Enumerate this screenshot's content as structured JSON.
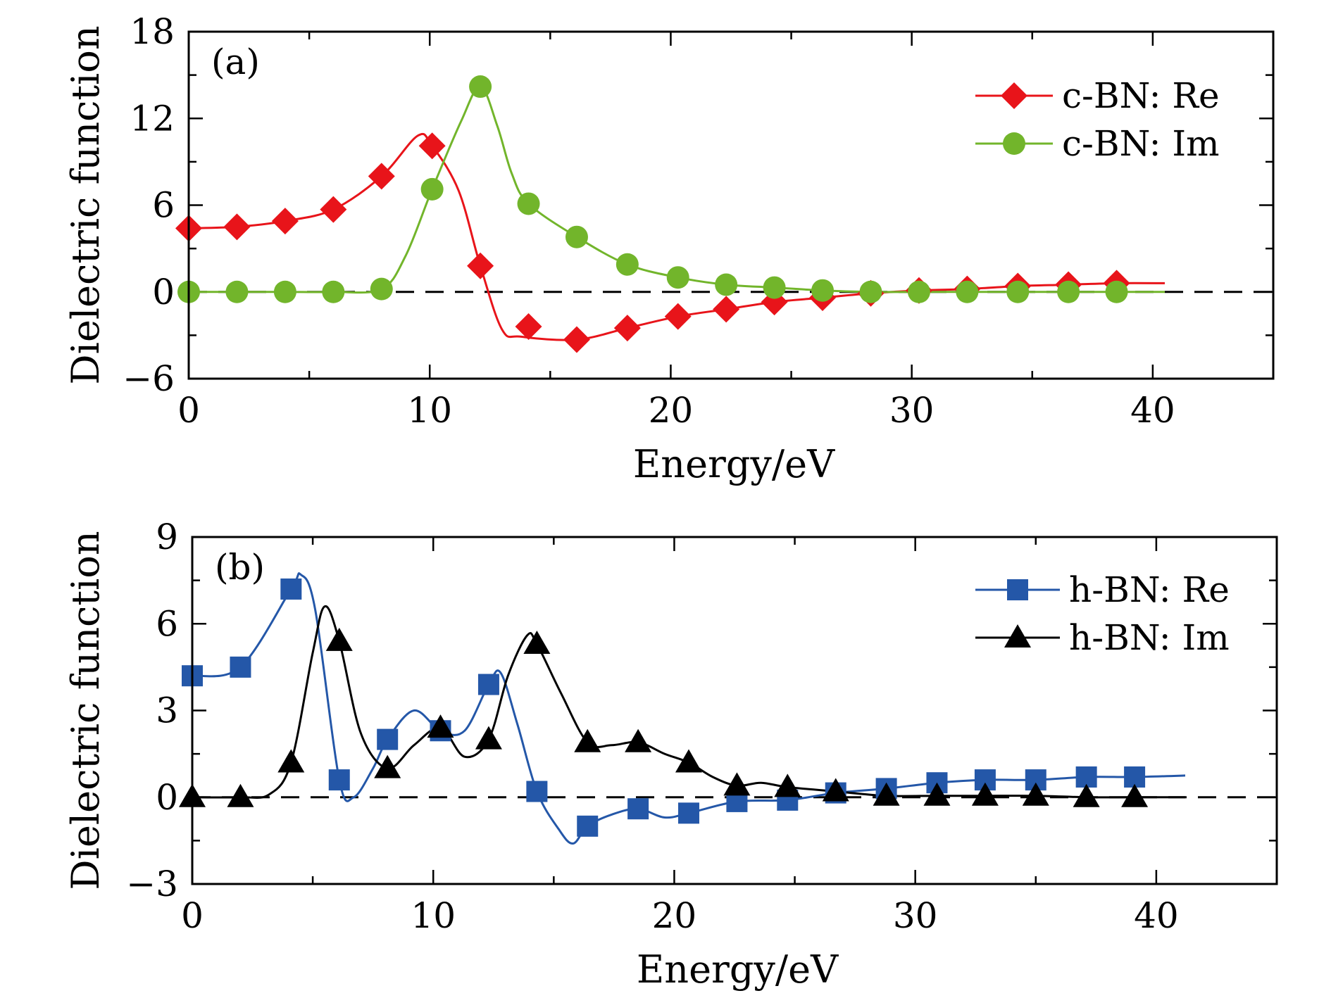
{
  "chart_data": [
    {
      "type": "line",
      "panel_label": "(a)",
      "xlabel": "Energy/eV",
      "ylabel": "Dielectric function",
      "xlim": [
        0,
        45
      ],
      "ylim": [
        -6,
        18
      ],
      "xticks": [
        0,
        10,
        20,
        30,
        40
      ],
      "xtick_labels": [
        "0",
        "10",
        "20",
        "30",
        "40"
      ],
      "yticks": [
        -6,
        0,
        6,
        12,
        18
      ],
      "ytick_labels": [
        "−6",
        "0",
        "6",
        "12",
        "18"
      ],
      "reference_line": {
        "y": 0,
        "style": "dashed"
      },
      "legend_position": "top-right",
      "grid": false,
      "series": [
        {
          "name": "c-BN: Re",
          "color": "#e8141a",
          "marker": "diamond",
          "markers": [
            [
              0,
              4.4
            ],
            [
              2,
              4.5
            ],
            [
              4,
              4.9
            ],
            [
              6,
              5.7
            ],
            [
              8,
              8.0
            ],
            [
              10.1,
              10.1
            ],
            [
              12.1,
              1.8
            ],
            [
              14.1,
              -2.4
            ],
            [
              16.1,
              -3.3
            ],
            [
              18.2,
              -2.5
            ],
            [
              20.3,
              -1.7
            ],
            [
              22.3,
              -1.2
            ],
            [
              24.3,
              -0.7
            ],
            [
              26.3,
              -0.4
            ],
            [
              28.3,
              -0.1
            ],
            [
              30.3,
              0.1
            ],
            [
              32.3,
              0.2
            ],
            [
              34.4,
              0.4
            ],
            [
              36.5,
              0.5
            ],
            [
              38.5,
              0.6
            ]
          ],
          "curve": [
            [
              0,
              4.4
            ],
            [
              2,
              4.5
            ],
            [
              4,
              4.9
            ],
            [
              6,
              5.7
            ],
            [
              8,
              8.0
            ],
            [
              9.5,
              10.8
            ],
            [
              10.1,
              10.1
            ],
            [
              11.2,
              7.0
            ],
            [
              12.1,
              1.8
            ],
            [
              13,
              -2.6
            ],
            [
              13.8,
              -3.1
            ],
            [
              16.1,
              -3.3
            ],
            [
              18.2,
              -2.5
            ],
            [
              20.3,
              -1.7
            ],
            [
              22.3,
              -1.2
            ],
            [
              24.3,
              -0.7
            ],
            [
              26.3,
              -0.4
            ],
            [
              28.3,
              -0.1
            ],
            [
              30.3,
              0.1
            ],
            [
              32.3,
              0.2
            ],
            [
              34.4,
              0.4
            ],
            [
              36.5,
              0.5
            ],
            [
              38.5,
              0.6
            ],
            [
              40.5,
              0.6
            ]
          ]
        },
        {
          "name": "c-BN: Im",
          "color": "#72b52b",
          "marker": "circle",
          "markers": [
            [
              0,
              0
            ],
            [
              2,
              0
            ],
            [
              4,
              0
            ],
            [
              6,
              0
            ],
            [
              8,
              0.2
            ],
            [
              10.1,
              7.1
            ],
            [
              12.1,
              14.2
            ],
            [
              14.1,
              6.1
            ],
            [
              16.1,
              3.8
            ],
            [
              18.2,
              1.9
            ],
            [
              20.3,
              1.0
            ],
            [
              22.3,
              0.5
            ],
            [
              24.3,
              0.3
            ],
            [
              26.3,
              0.1
            ],
            [
              28.3,
              0
            ],
            [
              30.3,
              0
            ],
            [
              32.3,
              0
            ],
            [
              34.4,
              0
            ],
            [
              36.5,
              0
            ],
            [
              38.5,
              0
            ]
          ],
          "curve": [
            [
              0,
              0
            ],
            [
              2,
              0
            ],
            [
              4,
              0
            ],
            [
              6,
              0
            ],
            [
              8,
              0.2
            ],
            [
              9,
              2.5
            ],
            [
              10.1,
              7.1
            ],
            [
              11.3,
              11.8
            ],
            [
              12.1,
              14.2
            ],
            [
              12.8,
              11.5
            ],
            [
              13.4,
              8.2
            ],
            [
              14.1,
              6.1
            ],
            [
              16.1,
              3.8
            ],
            [
              18.2,
              1.9
            ],
            [
              20.3,
              1.0
            ],
            [
              22.3,
              0.5
            ],
            [
              24.3,
              0.3
            ],
            [
              26.3,
              0.1
            ],
            [
              28.3,
              0
            ],
            [
              30.3,
              0
            ],
            [
              32.3,
              0
            ],
            [
              34.4,
              0
            ],
            [
              36.5,
              0
            ],
            [
              38.5,
              0
            ],
            [
              40.5,
              0
            ]
          ]
        }
      ]
    },
    {
      "type": "line",
      "panel_label": "(b)",
      "xlabel": "Energy/eV",
      "ylabel": "Dielectric function",
      "xlim": [
        0,
        45
      ],
      "ylim": [
        -3,
        9
      ],
      "xticks": [
        0,
        10,
        20,
        30,
        40
      ],
      "xtick_labels": [
        "0",
        "10",
        "20",
        "30",
        "40"
      ],
      "yticks": [
        -3,
        0,
        3,
        6,
        9
      ],
      "ytick_labels": [
        "−3",
        "0",
        "3",
        "6",
        "9"
      ],
      "reference_line": {
        "y": 0,
        "style": "dashed"
      },
      "legend_position": "top-right",
      "grid": false,
      "series": [
        {
          "name": "h-BN: Re",
          "color": "#2457a8",
          "marker": "square",
          "markers": [
            [
              0,
              4.2
            ],
            [
              2,
              4.5
            ],
            [
              4.1,
              7.2
            ],
            [
              6.1,
              0.6
            ],
            [
              8.1,
              2.0
            ],
            [
              10.3,
              2.3
            ],
            [
              12.3,
              3.9
            ],
            [
              14.3,
              0.2
            ],
            [
              16.4,
              -1.0
            ],
            [
              18.5,
              -0.4
            ],
            [
              20.6,
              -0.55
            ],
            [
              22.6,
              -0.15
            ],
            [
              24.7,
              -0.1
            ],
            [
              26.7,
              0.15
            ],
            [
              28.8,
              0.3
            ],
            [
              30.9,
              0.5
            ],
            [
              32.9,
              0.6
            ],
            [
              35,
              0.6
            ],
            [
              37.1,
              0.7
            ],
            [
              39.1,
              0.7
            ]
          ],
          "curve": [
            [
              0,
              4.2
            ],
            [
              2,
              4.5
            ],
            [
              4.1,
              7.2
            ],
            [
              4.5,
              7.7
            ],
            [
              5.1,
              6.5
            ],
            [
              6.1,
              0.6
            ],
            [
              6.7,
              0
            ],
            [
              7.5,
              1.0
            ],
            [
              8.1,
              2.0
            ],
            [
              9.2,
              3.0
            ],
            [
              10.3,
              2.3
            ],
            [
              11.3,
              2.3
            ],
            [
              12.3,
              3.9
            ],
            [
              12.8,
              4.3
            ],
            [
              13.5,
              2.5
            ],
            [
              14.3,
              0.2
            ],
            [
              15.2,
              -1.1
            ],
            [
              15.8,
              -1.6
            ],
            [
              16.4,
              -1.0
            ],
            [
              17.4,
              -0.6
            ],
            [
              18.5,
              -0.4
            ],
            [
              19.6,
              -0.7
            ],
            [
              20.6,
              -0.55
            ],
            [
              22.6,
              -0.15
            ],
            [
              24.7,
              -0.1
            ],
            [
              26.7,
              0.15
            ],
            [
              28.8,
              0.3
            ],
            [
              30.9,
              0.5
            ],
            [
              32.9,
              0.6
            ],
            [
              35,
              0.6
            ],
            [
              37.1,
              0.7
            ],
            [
              39.1,
              0.7
            ],
            [
              41.2,
              0.75
            ]
          ]
        },
        {
          "name": "h-BN: Im",
          "color": "#000000",
          "marker": "triangle",
          "markers": [
            [
              0,
              0
            ],
            [
              2,
              0
            ],
            [
              4.1,
              1.2
            ],
            [
              6.1,
              5.4
            ],
            [
              8.1,
              1.0
            ],
            [
              10.3,
              2.4
            ],
            [
              12.3,
              2.0
            ],
            [
              14.3,
              5.3
            ],
            [
              16.4,
              1.9
            ],
            [
              18.5,
              1.9
            ],
            [
              20.6,
              1.2
            ],
            [
              22.6,
              0.4
            ],
            [
              24.7,
              0.35
            ],
            [
              26.7,
              0.2
            ],
            [
              28.8,
              0.05
            ],
            [
              30.9,
              0.05
            ],
            [
              32.9,
              0.05
            ],
            [
              35,
              0.05
            ],
            [
              37.1,
              0
            ],
            [
              39.1,
              0
            ]
          ],
          "curve": [
            [
              0,
              0
            ],
            [
              2,
              0
            ],
            [
              3.2,
              0.1
            ],
            [
              4.1,
              1.2
            ],
            [
              5,
              5.0
            ],
            [
              5.5,
              6.6
            ],
            [
              6.1,
              5.4
            ],
            [
              7,
              2.2
            ],
            [
              8.1,
              1.0
            ],
            [
              9.2,
              1.8
            ],
            [
              10.3,
              2.4
            ],
            [
              11.3,
              1.4
            ],
            [
              12.3,
              2.0
            ],
            [
              13.1,
              4.2
            ],
            [
              13.9,
              5.6
            ],
            [
              14.3,
              5.3
            ],
            [
              15.3,
              3.6
            ],
            [
              16.4,
              1.9
            ],
            [
              17.4,
              1.8
            ],
            [
              18.5,
              1.9
            ],
            [
              19.6,
              1.5
            ],
            [
              20.6,
              1.2
            ],
            [
              21.6,
              0.7
            ],
            [
              22.6,
              0.4
            ],
            [
              23.6,
              0.5
            ],
            [
              24.7,
              0.35
            ],
            [
              26.7,
              0.2
            ],
            [
              28.8,
              0.05
            ],
            [
              30.9,
              0.05
            ],
            [
              32.9,
              0.05
            ],
            [
              35,
              0.05
            ],
            [
              37.1,
              0
            ],
            [
              39.1,
              0
            ],
            [
              41.2,
              0
            ]
          ]
        }
      ]
    }
  ]
}
